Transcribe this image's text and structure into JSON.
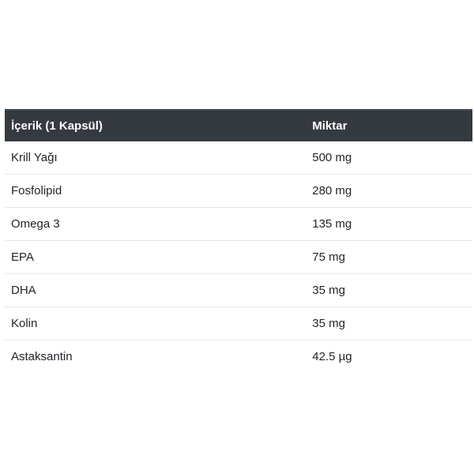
{
  "table": {
    "headers": {
      "ingredient": "İçerik (1 Kapsül)",
      "amount": "Miktar"
    },
    "rows": [
      {
        "name": "Krill Yağı",
        "amount": "500 mg"
      },
      {
        "name": "Fosfolipid",
        "amount": "280 mg"
      },
      {
        "name": "Omega 3",
        "amount": "135 mg"
      },
      {
        "name": "EPA",
        "amount": "75 mg"
      },
      {
        "name": "DHA",
        "amount": "35 mg"
      },
      {
        "name": "Kolin",
        "amount": "35 mg"
      },
      {
        "name": "Astaksantin",
        "amount": "42.5 µg"
      }
    ]
  },
  "colors": {
    "page_bg": "#ffffff",
    "header_bg": "#343a40",
    "header_border": "#454d55",
    "header_text": "#ffffff",
    "body_text": "#212529",
    "row_border": "#e4e7ea"
  },
  "chart_data": {
    "type": "table",
    "title": "İçerik (1 Kapsül)",
    "columns": [
      "İçerik (1 Kapsül)",
      "Miktar"
    ],
    "categories": [
      "Krill Yağı",
      "Fosfolipid",
      "Omega 3",
      "EPA",
      "DHA",
      "Kolin",
      "Astaksantin"
    ],
    "values": [
      500,
      280,
      135,
      75,
      35,
      35,
      42.5
    ],
    "units": [
      "mg",
      "mg",
      "mg",
      "mg",
      "mg",
      "mg",
      "µg"
    ],
    "legend_position": "none",
    "grid": "horizontal-row-separators"
  }
}
